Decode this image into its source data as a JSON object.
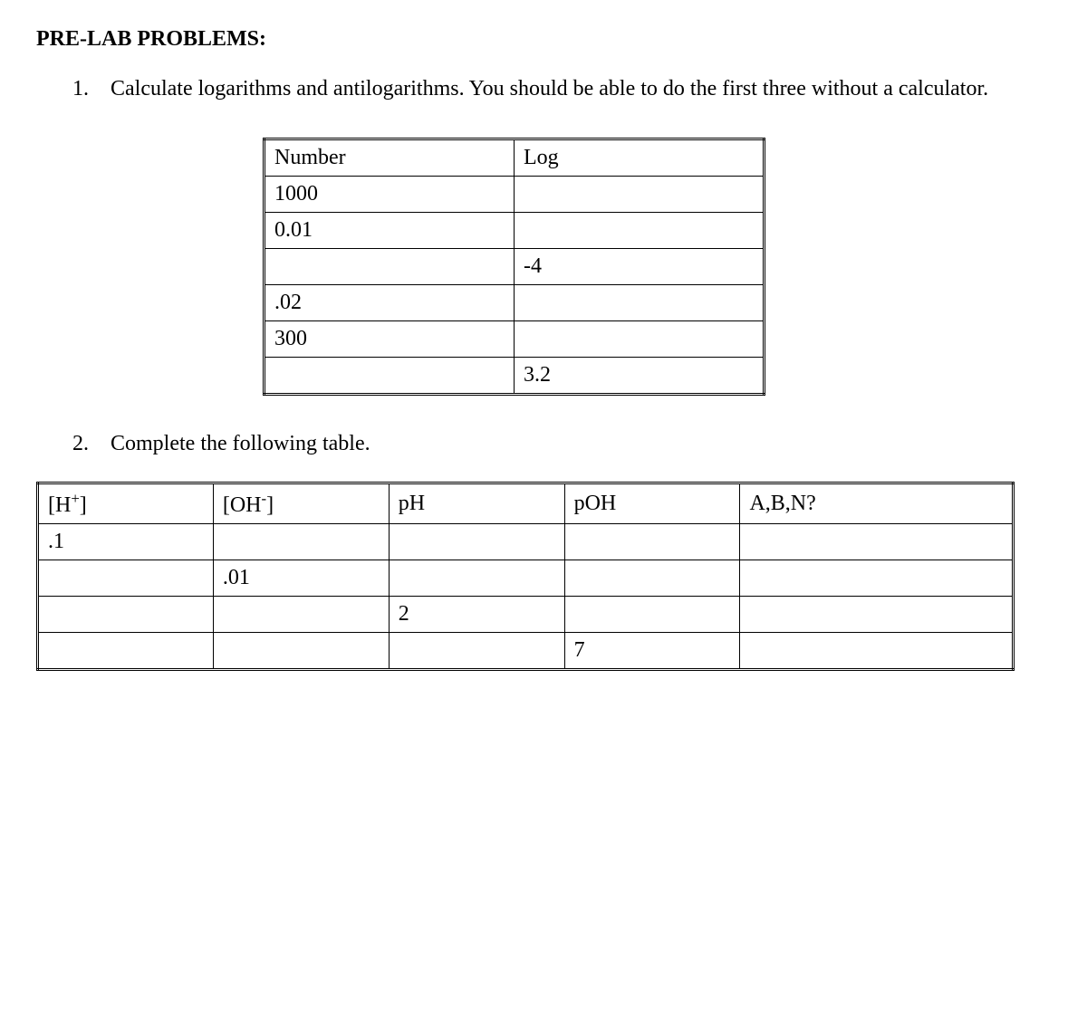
{
  "heading": "PRE-LAB PROBLEMS:",
  "problem1": {
    "number": "1.",
    "text": "Calculate logarithms and antilogarithms. You should be able to do the first three without a calculator.",
    "table": {
      "header_number": "Number",
      "header_log": "Log",
      "rows": [
        {
          "number": "1000",
          "log": ""
        },
        {
          "number": "0.01",
          "log": ""
        },
        {
          "number": "",
          "log": "-4"
        },
        {
          "number": ".02",
          "log": ""
        },
        {
          "number": "300",
          "log": ""
        },
        {
          "number": "",
          "log": "3.2"
        }
      ]
    }
  },
  "problem2": {
    "number": "2.",
    "text": "Complete the following table.",
    "table": {
      "header_h": "[H",
      "header_h_sup": "+",
      "header_h_close": "]",
      "header_oh": "[OH",
      "header_oh_sup": "-",
      "header_oh_close": "]",
      "header_ph": "pH",
      "header_poh": "pOH",
      "header_abn": "A,B,N?",
      "rows": [
        {
          "h": ".1",
          "oh": "",
          "ph": "",
          "poh": "",
          "abn": ""
        },
        {
          "h": "",
          "oh": ".01",
          "ph": "",
          "poh": "",
          "abn": ""
        },
        {
          "h": "",
          "oh": "",
          "ph": "2",
          "poh": "",
          "abn": ""
        },
        {
          "h": "",
          "oh": "",
          "ph": "",
          "poh": "7",
          "abn": ""
        }
      ]
    }
  }
}
